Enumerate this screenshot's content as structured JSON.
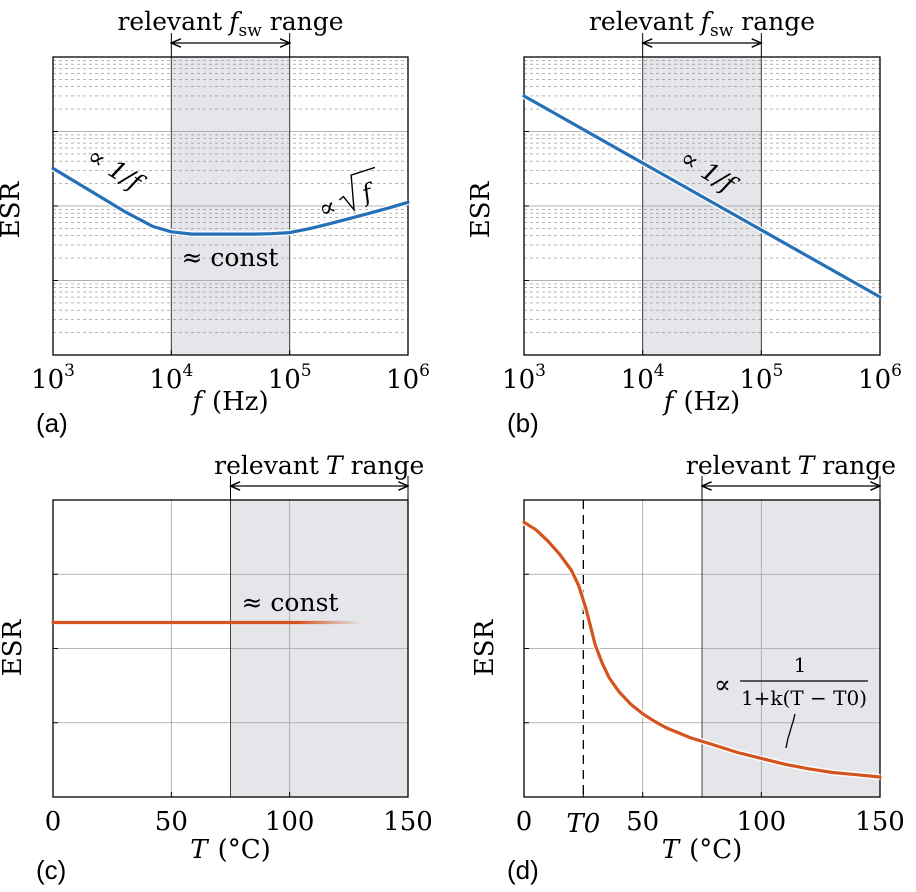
{
  "panels": [
    {
      "letter": "(a)",
      "range_label": "relevant",
      "range_symbol": "f",
      "range_sub": "sw",
      "range_tail": "range"
    },
    {
      "letter": "(b)",
      "range_label": "relevant",
      "range_symbol": "f",
      "range_sub": "sw",
      "range_tail": "range"
    },
    {
      "letter": "(c)",
      "range_label": "relevant",
      "range_symbol": "T",
      "range_sub": "",
      "range_tail": "range"
    },
    {
      "letter": "(d)",
      "range_label": "relevant",
      "range_symbol": "T",
      "range_sub": "",
      "range_tail": "range"
    }
  ],
  "colors": {
    "blue": "#2570b6",
    "orange": "#d4541f",
    "band": "#e5e6ea"
  },
  "chart_data": [
    {
      "type": "line",
      "panel": "a",
      "ylabel": "ESR",
      "xlabel_symbol": "f",
      "xlabel_unit": "(Hz)",
      "xscale": "log",
      "xlim": [
        1000,
        1000000
      ],
      "xticks": [
        {
          "base": "10",
          "exp": "3"
        },
        {
          "base": "10",
          "exp": "4"
        },
        {
          "base": "10",
          "exp": "5"
        },
        {
          "base": "10",
          "exp": "6"
        }
      ],
      "yscale": "log",
      "ylim": [
        0.01,
        100
      ],
      "shaded_range": [
        10000,
        100000
      ],
      "grid": true,
      "series": [
        {
          "color": "#2570b6",
          "x": [
            1000,
            2000,
            4000,
            7000,
            10000,
            15000,
            20000,
            30000,
            50000,
            70000,
            100000,
            150000,
            200000,
            300000,
            500000,
            700000,
            1000000
          ],
          "y": [
            3.2,
            1.65,
            0.85,
            0.53,
            0.45,
            0.42,
            0.42,
            0.42,
            0.42,
            0.425,
            0.44,
            0.5,
            0.56,
            0.66,
            0.82,
            0.95,
            1.12
          ]
        }
      ],
      "annotations": [
        {
          "text": "∝ 1/f"
        },
        {
          "text": "≈ const"
        },
        {
          "text": "∝ √f",
          "radicand": "f"
        }
      ]
    },
    {
      "type": "line",
      "panel": "b",
      "ylabel": "ESR",
      "xlabel_symbol": "f",
      "xlabel_unit": "(Hz)",
      "xscale": "log",
      "xlim": [
        1000,
        1000000
      ],
      "xticks": [
        {
          "base": "10",
          "exp": "3"
        },
        {
          "base": "10",
          "exp": "4"
        },
        {
          "base": "10",
          "exp": "5"
        },
        {
          "base": "10",
          "exp": "6"
        }
      ],
      "yscale": "log",
      "ylim": [
        0.01,
        100
      ],
      "shaded_range": [
        10000,
        100000
      ],
      "grid": true,
      "series": [
        {
          "color": "#2570b6",
          "x": [
            1000,
            1000000
          ],
          "y": [
            30,
            0.06
          ]
        }
      ],
      "annotations": [
        {
          "text": "∝ 1/f"
        }
      ]
    },
    {
      "type": "line",
      "panel": "c",
      "ylabel": "ESR",
      "xlabel_symbol": "T",
      "xlabel_unit": "(°C)",
      "xlim": [
        0,
        150
      ],
      "xticks": [
        "0",
        "50",
        "100",
        "150"
      ],
      "ylim": [
        0,
        4
      ],
      "shaded_range": [
        75,
        150
      ],
      "grid": true,
      "series": [
        {
          "color": "#d4541f",
          "x": [
            0,
            130
          ],
          "y": [
            2.35,
            2.35
          ],
          "fade_from": 98
        }
      ],
      "annotations": [
        {
          "text": "≈ const"
        }
      ]
    },
    {
      "type": "line",
      "panel": "d",
      "ylabel": "ESR",
      "xlabel_symbol": "T",
      "xlabel_unit": "(°C)",
      "xlim": [
        0,
        150
      ],
      "xticks": [
        "0",
        "T0",
        "50",
        "100",
        "150"
      ],
      "ylim": [
        0,
        4
      ],
      "shaded_range": [
        75,
        150
      ],
      "grid": true,
      "vline": {
        "x": 25,
        "label": "T0",
        "style": "dashed"
      },
      "series": [
        {
          "color": "#d4541f",
          "x": [
            0,
            5,
            10,
            15,
            20,
            23,
            26,
            28,
            30,
            33,
            36,
            40,
            45,
            50,
            55,
            60,
            70,
            80,
            90,
            100,
            110,
            120,
            130,
            140,
            150
          ],
          "y": [
            3.7,
            3.6,
            3.45,
            3.27,
            3.05,
            2.85,
            2.55,
            2.3,
            2.05,
            1.8,
            1.6,
            1.42,
            1.25,
            1.12,
            1.02,
            0.93,
            0.8,
            0.7,
            0.6,
            0.52,
            0.44,
            0.38,
            0.33,
            0.3,
            0.27
          ]
        }
      ],
      "annotations": [
        {
          "text": "∝",
          "numerator": "1",
          "denominator": "1+k(T − T0)"
        }
      ]
    }
  ]
}
